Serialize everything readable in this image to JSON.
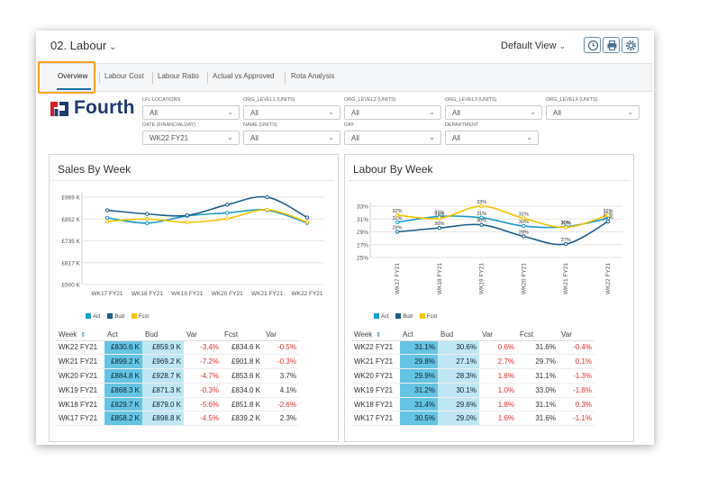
{
  "header": {
    "title": "02. Labour",
    "view_label": "Default View"
  },
  "header_icons": [
    "clock-icon",
    "print-icon",
    "settings-icon"
  ],
  "tabs": [
    "Overview",
    "Labour Cost",
    "Labour Ratio",
    "Actual vs Approved",
    "Rota Analysis"
  ],
  "logo": {
    "text": "Fourth"
  },
  "filters": [
    {
      "label": "LFL LOCATIONS",
      "value": "All"
    },
    {
      "label": "ORG_LEVEL1 (UNITS)",
      "value": "All"
    },
    {
      "label": "ORG_LEVEL2 (UNITS)",
      "value": "All"
    },
    {
      "label": "ORG_LEVEL3 (UNITS)",
      "value": "All"
    },
    {
      "label": "ORG_LEVEL4 (UNITS)",
      "value": "All"
    },
    {
      "label": "DATE (FINANCIALDAY)",
      "value": "WK22 FY21"
    },
    {
      "label": "NAME (UNITS)",
      "value": "All"
    },
    {
      "label": "DAY",
      "value": "All"
    },
    {
      "label": "DEPARTMENT",
      "value": "All"
    }
  ],
  "colors": {
    "act": "#1a9bcc",
    "bud": "#1f5f8a",
    "fcst": "#f2c400",
    "neg": "#e03030"
  },
  "sales": {
    "title": "Sales By Week",
    "legend": [
      "Act",
      "Bud",
      "Fcst"
    ],
    "columns": [
      "Week",
      "Act",
      "Bud",
      "Var",
      "Fcst",
      "Var"
    ],
    "rows": [
      [
        "WK22 FY21",
        "£830.6 K",
        "£859.9 K",
        "-3.4%",
        "£834.6 K",
        "-0.5%"
      ],
      [
        "WK21 FY21",
        "£899.2 K",
        "£969.2 K",
        "-7.2%",
        "£901.8 K",
        "-0.3%"
      ],
      [
        "WK20 FY21",
        "£884.8 K",
        "£928.7 K",
        "-4.7%",
        "£853.6 K",
        "3.7%"
      ],
      [
        "WK19 FY21",
        "£868.3 K",
        "£871.3 K",
        "-0.3%",
        "£834.0 K",
        "4.1%"
      ],
      [
        "WK18 FY21",
        "£829.7 K",
        "£879.0 K",
        "-5.6%",
        "£851.8 K",
        "-2.6%"
      ],
      [
        "WK17 FY21",
        "£858.2 K",
        "£898.8 K",
        "-4.5%",
        "£839.2 K",
        "2.3%"
      ]
    ]
  },
  "labour": {
    "title": "Labour By Week",
    "legend": [
      "Act",
      "Bud",
      "Fcst"
    ],
    "columns": [
      "Week",
      "Act",
      "Bud",
      "Var",
      "Fcst",
      "Var"
    ],
    "rows": [
      [
        "WK22 FY21",
        "31.1%",
        "30.6%",
        "0.6%",
        "31.6%",
        "-0.4%"
      ],
      [
        "WK21 FY21",
        "29.8%",
        "27.1%",
        "2.7%",
        "29.7%",
        "0.1%"
      ],
      [
        "WK20 FY21",
        "29.9%",
        "28.3%",
        "1.6%",
        "31.1%",
        "-1.3%"
      ],
      [
        "WK19 FY21",
        "31.2%",
        "30.1%",
        "1.0%",
        "33.0%",
        "-1.8%"
      ],
      [
        "WK18 FY21",
        "31.4%",
        "29.6%",
        "1.8%",
        "31.1%",
        "0.3%"
      ],
      [
        "WK17 FY21",
        "30.5%",
        "29.0%",
        "1.6%",
        "31.6%",
        "-1.1%"
      ]
    ]
  },
  "chart_data": [
    {
      "type": "line",
      "title": "Sales By Week",
      "categories": [
        "WK17 FY21",
        "WK18 FY21",
        "WK19 FY21",
        "WK20 FY21",
        "WK21 FY21",
        "WK22 FY21"
      ],
      "ytick_labels": [
        "£500 K",
        "£617 K",
        "£735 K",
        "£852 K",
        "£969 K"
      ],
      "ylim": [
        500,
        969
      ],
      "series": [
        {
          "name": "Act",
          "values": [
            858.2,
            829.7,
            868.3,
            884.8,
            899.2,
            830.6
          ]
        },
        {
          "name": "Bud",
          "values": [
            898.8,
            879.0,
            871.3,
            928.7,
            969.2,
            859.9
          ]
        },
        {
          "name": "Fcst",
          "values": [
            839.2,
            851.8,
            834.0,
            853.6,
            901.8,
            834.6
          ]
        }
      ]
    },
    {
      "type": "line",
      "title": "Labour By Week",
      "categories": [
        "WK17 FY21",
        "WK18 FY21",
        "WK19 FY21",
        "WK20 FY21",
        "WK21 FY21",
        "WK22 FY21"
      ],
      "ytick_labels": [
        "25%",
        "27%",
        "29%",
        "31%",
        "33%"
      ],
      "ylim": [
        25,
        33
      ],
      "series": [
        {
          "name": "Act",
          "values": [
            30.5,
            31.4,
            31.2,
            29.9,
            29.8,
            31.1
          ],
          "labels": [
            "31%",
            "31%",
            "31%",
            "30%",
            "30%",
            "31%"
          ]
        },
        {
          "name": "Bud",
          "values": [
            29.0,
            29.6,
            30.1,
            28.3,
            27.1,
            30.6
          ],
          "labels": [
            "29%",
            "30%",
            "30%",
            "28%",
            "27%",
            "31%"
          ]
        },
        {
          "name": "Fcst",
          "values": [
            31.6,
            31.1,
            33.0,
            31.1,
            29.7,
            31.6
          ],
          "labels": [
            "32%",
            "31%",
            "33%",
            "31%",
            "30%",
            "32%"
          ]
        }
      ]
    }
  ]
}
